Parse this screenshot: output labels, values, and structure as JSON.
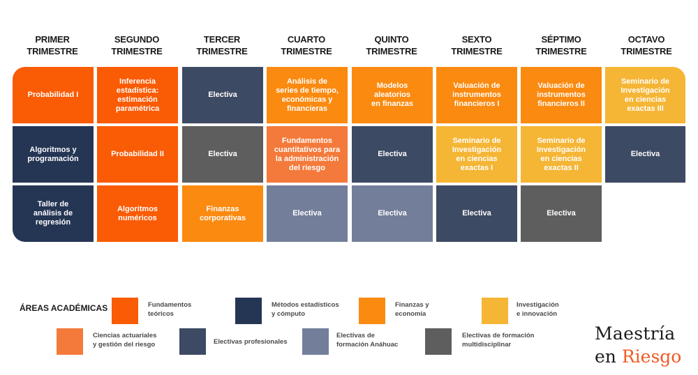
{
  "headers": [
    {
      "line1": "PRIMER",
      "line2": "TRIMESTRE"
    },
    {
      "line1": "SEGUNDO",
      "line2": "TRIMESTRE"
    },
    {
      "line1": "TERCER",
      "line2": "TRIMESTRE"
    },
    {
      "line1": "CUARTO",
      "line2": "TRIMESTRE"
    },
    {
      "line1": "QUINTO",
      "line2": "TRIMESTRE"
    },
    {
      "line1": "SEXTO",
      "line2": "TRIMESTRE"
    },
    {
      "line1": "SÉPTIMO",
      "line2": "TRIMESTRE"
    },
    {
      "line1": "OCTAVO",
      "line2": "TRIMESTRE"
    }
  ],
  "grid": {
    "row1": [
      {
        "lines": [
          "Probabilidad I"
        ],
        "color": "#fa5b05"
      },
      {
        "lines": [
          "Inferencia",
          "estadística:",
          "estimación",
          "paramétrica"
        ],
        "color": "#fa5b05"
      },
      {
        "lines": [
          "Electiva"
        ],
        "color": "#3d4a63"
      },
      {
        "lines": [
          "Análisis de",
          "series de tiempo,",
          "económicas y",
          "financieras"
        ],
        "color": "#fb8a10"
      },
      {
        "lines": [
          "Modelos",
          "aleatorios",
          "en finanzas"
        ],
        "color": "#fb8a10"
      },
      {
        "lines": [
          "Valuación de",
          "instrumentos",
          "financieros I"
        ],
        "color": "#fb8a10"
      },
      {
        "lines": [
          "Valuación de",
          "instrumentos",
          "financieros II"
        ],
        "color": "#fb8a10"
      },
      {
        "lines": [
          "Seminario de",
          "Investigación",
          "en ciencias",
          "exactas III"
        ],
        "color": "#f5b535"
      }
    ],
    "row2": [
      {
        "lines": [
          "Algoritmos y",
          "programación"
        ],
        "color": "#253554"
      },
      {
        "lines": [
          "Probabilidad II"
        ],
        "color": "#fa5b05"
      },
      {
        "lines": [
          "Electiva"
        ],
        "color": "#5e5e5e"
      },
      {
        "lines": [
          "Fundamentos",
          "cuantitativos para",
          "la administración",
          "del riesgo"
        ],
        "color": "#f47a3b"
      },
      {
        "lines": [
          "Electiva"
        ],
        "color": "#3d4a63"
      },
      {
        "lines": [
          "Seminario de",
          "Investigación",
          "en ciencias",
          "exactas I"
        ],
        "color": "#f5b535"
      },
      {
        "lines": [
          "Seminario de",
          "Investigación",
          "en ciencias",
          "exactas II"
        ],
        "color": "#f5b535"
      },
      {
        "lines": [
          "Electiva"
        ],
        "color": "#3d4a63"
      }
    ],
    "row3": [
      {
        "lines": [
          "Taller de",
          "análisis de",
          "regresión"
        ],
        "color": "#253554"
      },
      {
        "lines": [
          "Algoritmos",
          "numéricos"
        ],
        "color": "#fa5b05"
      },
      {
        "lines": [
          "Finanzas",
          "corporativas"
        ],
        "color": "#fb8a10"
      },
      {
        "lines": [
          "Electiva"
        ],
        "color": "#737f9a"
      },
      {
        "lines": [
          "Electiva"
        ],
        "color": "#737f9a"
      },
      {
        "lines": [
          "Electiva"
        ],
        "color": "#3d4a63"
      },
      {
        "lines": [
          "Electiva"
        ],
        "color": "#5e5e5e"
      }
    ]
  },
  "legend": {
    "title": "ÁREAS ACADÉMICAS",
    "items": [
      {
        "l1": "Fundamentos",
        "l2": "teóricos",
        "color": "#fa5b05"
      },
      {
        "l1": "Métodos estadísticos",
        "l2": "y cómputo",
        "color": "#253554"
      },
      {
        "l1": "Finanzas y",
        "l2": "economía",
        "color": "#fb8a10"
      },
      {
        "l1": "Investigación",
        "l2": "e innovación",
        "color": "#f5b535"
      },
      {
        "l1": "Ciencias actuariales",
        "l2": "y gestión del riesgo",
        "color": "#f47a3b"
      },
      {
        "l1": "Electivas profesionales",
        "l2": "",
        "color": "#3d4a63"
      },
      {
        "l1": "Electivas de",
        "l2": "formación Anáhuac",
        "color": "#737f9a"
      },
      {
        "l1": "Electivas de formación",
        "l2": "multidisciplinar",
        "color": "#5e5e5e"
      }
    ]
  },
  "brand": {
    "line1": "Maestría",
    "line2a": "en",
    "line2b": "Riesgo",
    "accent": "#f05a22"
  }
}
